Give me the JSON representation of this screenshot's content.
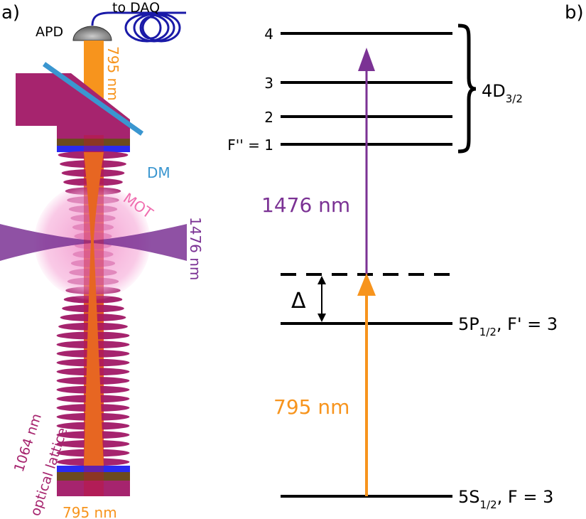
{
  "panel_a": {
    "label": "a)",
    "apd": "APD",
    "daq": "to DAQ",
    "beam_top": "795 nm",
    "beam_bottom": "795 nm",
    "dm": "DM",
    "mot": "MOT",
    "beam_1476": "1476 nm",
    "lattice_line1": "1064 nm",
    "lattice_line2": "optical lattice"
  },
  "panel_b": {
    "label": "b)",
    "levels_4d": [
      "4",
      "3",
      "2",
      "F'' = 1"
    ],
    "group_4d": "4D",
    "group_4d_sub": "3/2",
    "level_5p": "5P",
    "level_5p_sub": "1/2",
    "level_5p_f": ", F' = 3",
    "level_5s": "5S",
    "level_5s_sub": "1/2",
    "level_5s_f": ", F = 3",
    "delta": "Δ",
    "transition_upper": "1476 nm",
    "transition_lower": "795 nm"
  },
  "colors": {
    "orange": "#f7941d",
    "purple": "#7b3294",
    "magenta": "#a6246e",
    "dm_blue": "#3a96d0",
    "fiber": "#1a1aa8"
  }
}
